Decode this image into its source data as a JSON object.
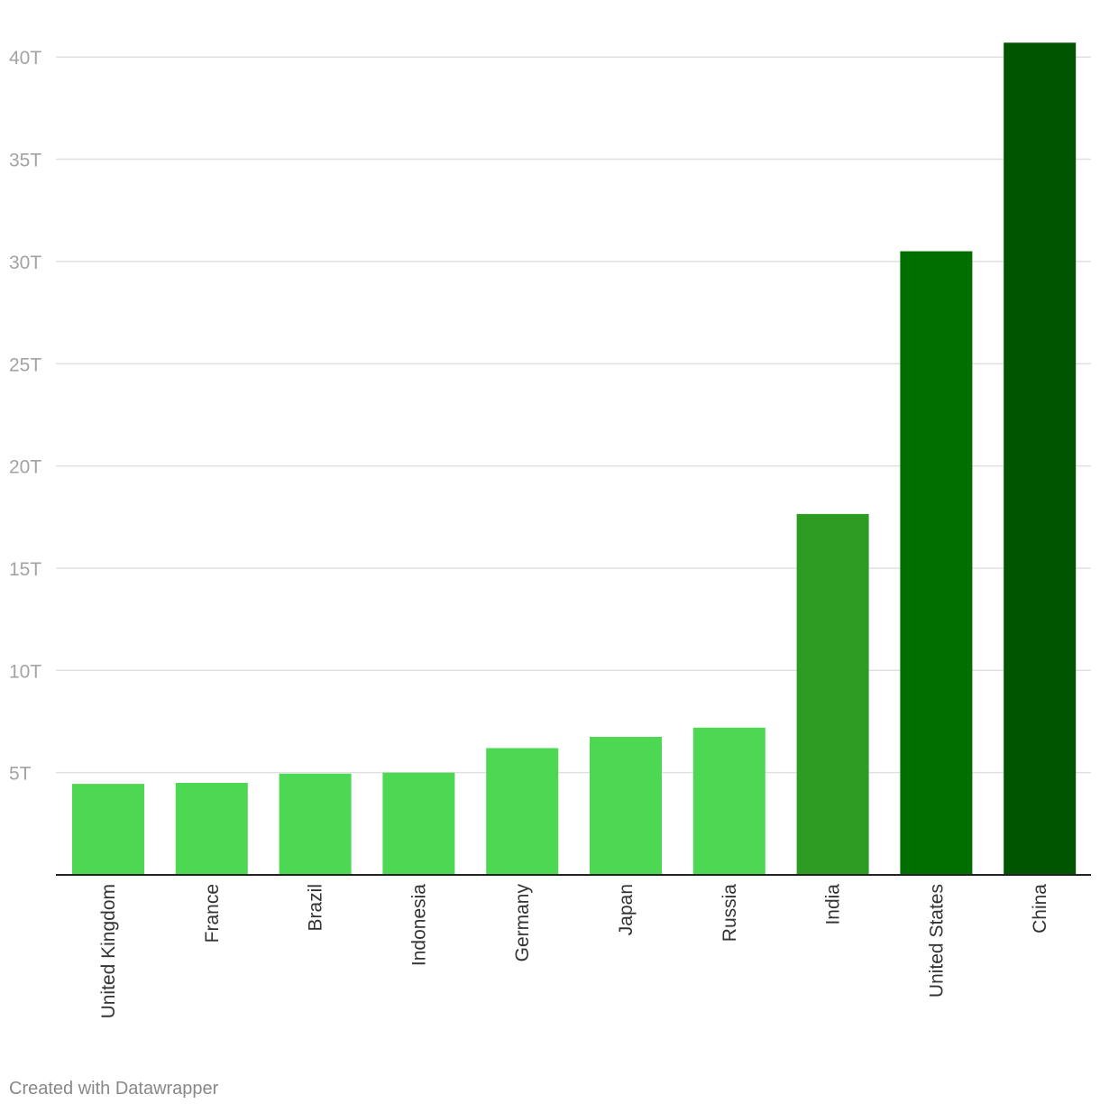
{
  "chart_data": {
    "type": "bar",
    "categories": [
      "United Kingdom",
      "France",
      "Brazil",
      "Indonesia",
      "Germany",
      "Japan",
      "Russia",
      "India",
      "United States",
      "China"
    ],
    "values": [
      4.45,
      4.5,
      4.95,
      5.0,
      6.2,
      6.75,
      7.2,
      17.65,
      30.5,
      40.7
    ],
    "colors": [
      "#4cd853",
      "#4cd853",
      "#4cd853",
      "#4cd853",
      "#4cd853",
      "#4cd853",
      "#4cd853",
      "#2e9c23",
      "#006f00",
      "#005500"
    ],
    "y_ticks": [
      5,
      10,
      15,
      20,
      25,
      30,
      35,
      40
    ],
    "y_tick_labels": [
      "5T",
      "10T",
      "15T",
      "20T",
      "25T",
      "30T",
      "35T",
      "40T"
    ],
    "ylim": [
      0,
      41
    ],
    "unit": "T",
    "grid": true,
    "title": "",
    "xlabel": "",
    "ylabel": ""
  },
  "footer": {
    "credit": "Created with Datawrapper"
  }
}
